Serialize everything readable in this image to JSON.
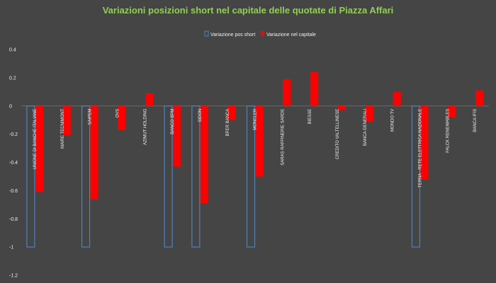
{
  "colors": {
    "background": "#454545",
    "title": "#8fd14f",
    "series1": "#4f81bd",
    "series2": "#ff0000",
    "gridline": "#6a6a6a",
    "text": "#f0f0f0"
  },
  "chart_data": {
    "type": "bar",
    "title": "Variazioni posizioni short nel capitale delle quotate di Piazza Affari",
    "xlabel": "",
    "ylabel": "",
    "ylim": [
      -1.2,
      0.4
    ],
    "yticks": [
      "0.4",
      "0.2",
      "0",
      "-0.2",
      "-0.4",
      "-0.6",
      "-0.8",
      "-1",
      "-1.2"
    ],
    "grid": false,
    "legend": "top-center",
    "categories": [
      "UNIONE DI BANCHE ITALIANE",
      "MAIRE TECNIMONT",
      "SAIPEM",
      "OVS",
      "AZIMUT HOLDING",
      "BANCO BPM",
      "SIDON",
      "BPER BANCA",
      "MONCLER",
      "SARAS  RAFFINERIE SARDE",
      "BIESSE",
      "CREDITO VALTELLINESE",
      "BANCA GENERALI",
      "MONDO TV",
      "TERNA - RETE ELETTRICA NAZIONALE",
      "FALCK RENEWABLES",
      "BANCA IFIS"
    ],
    "series": [
      {
        "name": "Variazione pos short",
        "values": [
          -1,
          0,
          -1,
          0,
          0,
          -1,
          -1,
          0,
          -1,
          0,
          0,
          0,
          0,
          0,
          -1,
          0,
          0
        ]
      },
      {
        "name": "Variazione nel capitale",
        "values": [
          -0.61,
          -0.21,
          -0.66,
          -0.17,
          0.09,
          -0.43,
          -0.69,
          -0.1,
          -0.5,
          0.19,
          0.24,
          -0.03,
          -0.11,
          0.1,
          -0.52,
          -0.08,
          0.11
        ]
      }
    ]
  }
}
